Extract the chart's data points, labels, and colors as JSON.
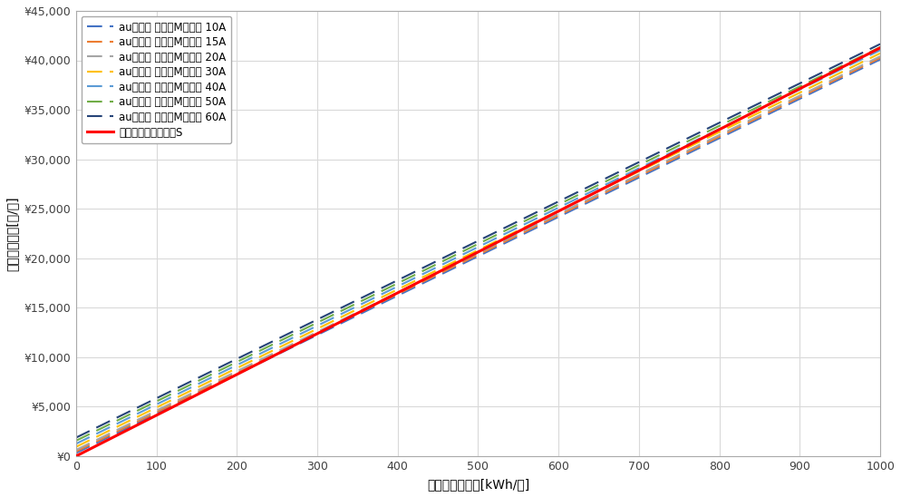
{
  "xlabel": "月間電力使用量[kWh/月]",
  "ylabel": "推定電気料金[円/月]",
  "xlim": [
    0,
    1000
  ],
  "ylim": [
    0,
    45000
  ],
  "ytick_step": 5000,
  "xtick_step": 100,
  "series": [
    {
      "label": "auでんき でんきMプラン 10A",
      "color": "#4472C4",
      "base_fee": 311,
      "rate": 39.78
    },
    {
      "label": "auでんき でんきMプラン 15A",
      "color": "#ED7D31",
      "base_fee": 467,
      "rate": 39.78
    },
    {
      "label": "auでんき でんきMプラン 20A",
      "color": "#A5A5A5",
      "base_fee": 623,
      "rate": 39.78
    },
    {
      "label": "auでんき でんきMプラン 30A",
      "color": "#FFC000",
      "base_fee": 934,
      "rate": 39.78
    },
    {
      "label": "auでんき でんきMプラン 40A",
      "color": "#5B9BD5",
      "base_fee": 1246,
      "rate": 39.78
    },
    {
      "label": "auでんき でんきMプラン 50A",
      "color": "#70AD47",
      "base_fee": 1557,
      "rate": 39.78
    },
    {
      "label": "auでんき でんきMプラン 60A",
      "color": "#264478",
      "base_fee": 1868,
      "rate": 39.78
    }
  ],
  "rakuten": {
    "label": "楽天でんき　プランS",
    "color": "#FF0000",
    "base_fee": 0,
    "rate": 41.26
  },
  "background_color": "#FFFFFF",
  "grid_color": "#D9D9D9",
  "legend_fontsize": 8.5,
  "axis_label_fontsize": 10,
  "tick_fontsize": 9,
  "line_dashes": [
    8,
    4
  ],
  "line_linewidth": 1.5,
  "rakuten_linewidth": 2.2
}
